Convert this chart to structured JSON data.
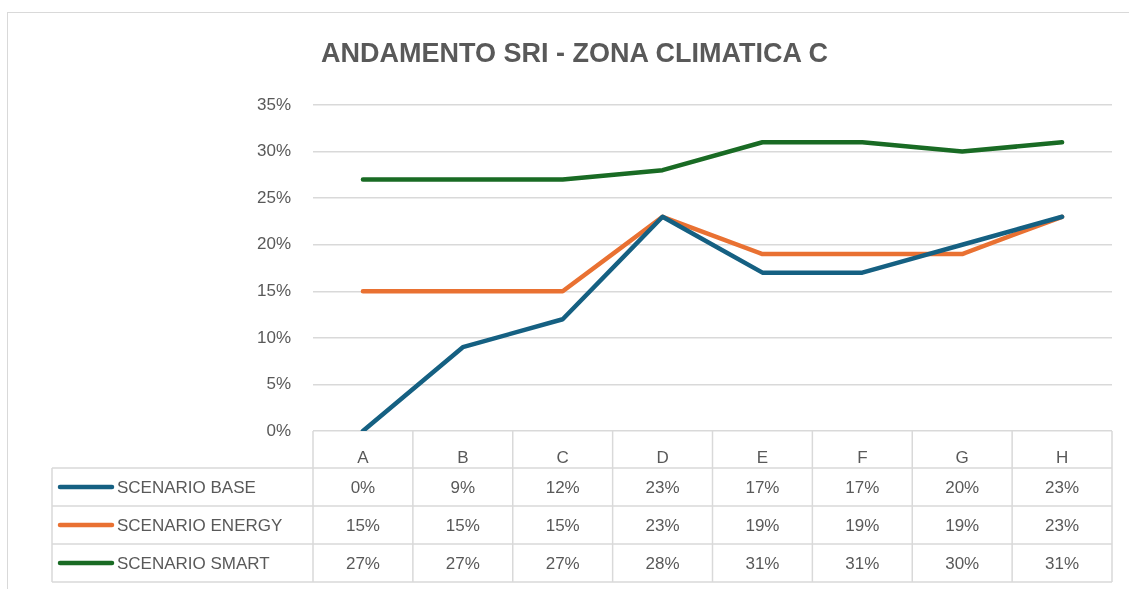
{
  "chart_data": {
    "type": "line",
    "title": "ANDAMENTO SRI - ZONA CLIMATICA C",
    "categories": [
      "A",
      "B",
      "C",
      "D",
      "E",
      "F",
      "G",
      "H"
    ],
    "series": [
      {
        "name": "SCENARIO BASE",
        "color": "#156082",
        "values": [
          0,
          9,
          12,
          23,
          17,
          17,
          20,
          23
        ],
        "value_labels": [
          "0%",
          "9%",
          "12%",
          "23%",
          "17%",
          "17%",
          "20%",
          "23%"
        ]
      },
      {
        "name": "SCENARIO ENERGY",
        "color": "#e97132",
        "values": [
          15,
          15,
          15,
          23,
          19,
          19,
          19,
          23
        ],
        "value_labels": [
          "15%",
          "15%",
          "15%",
          "23%",
          "19%",
          "19%",
          "19%",
          "23%"
        ]
      },
      {
        "name": "SCENARIO SMART",
        "color": "#196b24",
        "values": [
          27,
          27,
          27,
          28,
          31,
          31,
          30,
          31
        ],
        "value_labels": [
          "27%",
          "27%",
          "27%",
          "28%",
          "31%",
          "31%",
          "30%",
          "31%"
        ]
      }
    ],
    "ylim": [
      0,
      35
    ],
    "yticks": [
      {
        "value": 0,
        "label": "0%"
      },
      {
        "value": 5,
        "label": "5%"
      },
      {
        "value": 10,
        "label": "10%"
      },
      {
        "value": 15,
        "label": "15%"
      },
      {
        "value": 20,
        "label": "20%"
      },
      {
        "value": 25,
        "label": "25%"
      },
      {
        "value": 30,
        "label": "30%"
      },
      {
        "value": 35,
        "label": "35%"
      }
    ],
    "grid": "y",
    "legend": "bottom"
  }
}
